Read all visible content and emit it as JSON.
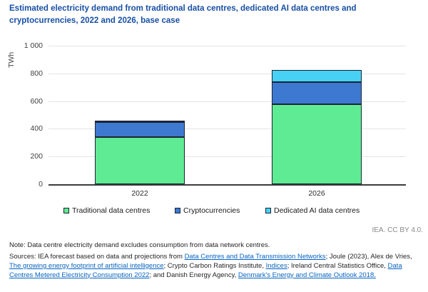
{
  "chart_data": {
    "type": "bar",
    "stacked": true,
    "title": "Estimated electricity demand from traditional data centres, dedicated AI data centres and cryptocurrencies, 2022 and 2026, base case",
    "ylabel": "TWh",
    "ylim": [
      0,
      1000
    ],
    "grid": true,
    "legend_position": "bottom",
    "categories": [
      "2022",
      "2026"
    ],
    "series": [
      {
        "name": "Traditional data centres",
        "color": "#5FEB93",
        "values": [
          340,
          575
        ]
      },
      {
        "name": "Cryptocurrencies",
        "color": "#3E79D1",
        "values": [
          110,
          160
        ]
      },
      {
        "name": "Dedicated AI data centres",
        "color": "#47D1F5",
        "values": [
          10,
          90
        ]
      }
    ],
    "yticks": [
      {
        "value": 0,
        "label": "0"
      },
      {
        "value": 200,
        "label": "200"
      },
      {
        "value": 400,
        "label": "400"
      },
      {
        "value": 600,
        "label": "600"
      },
      {
        "value": 800,
        "label": "800"
      },
      {
        "value": 1000,
        "label": "1 000"
      }
    ]
  },
  "attribution": "IEA. CC BY 4.0.",
  "note": "Note: Data centre electricity demand excludes consumption from data network centres.",
  "sources": {
    "segments": [
      {
        "text": "Sources: IEA forecast based on data and projections from ",
        "link": false
      },
      {
        "text": "Data Centres and Data Transmission Networks",
        "link": true
      },
      {
        "text": "; Joule (2023), Alex de Vries, ",
        "link": false
      },
      {
        "text": "The growing energy footprint of artificial intelligence",
        "link": true
      },
      {
        "text": "; Crypto Carbon Ratings Institute, ",
        "link": false
      },
      {
        "text": "Indices",
        "link": true
      },
      {
        "text": "; Ireland Central Statistics Office, ",
        "link": false
      },
      {
        "text": "Data Centres Metered Electricity Consumption 2022",
        "link": true
      },
      {
        "text": "; and Danish Energy Agency, ",
        "link": false
      },
      {
        "text": "Denmark's Energy and Climate Outlook 2018.",
        "link": true
      }
    ]
  },
  "colors": {
    "title_text": "#174FA5",
    "link": "#0563C1",
    "bar_border": "#1A2433",
    "gridline": "#E4E4E4",
    "axis": "#3C3C3C",
    "tick_text": "#3F3F3F",
    "note_text": "#262626",
    "attribution_text": "#8A8A8A",
    "traditional_green": "#5FEB93",
    "crypto_blue": "#3E79D1",
    "ai_cyan": "#47D1F5"
  }
}
